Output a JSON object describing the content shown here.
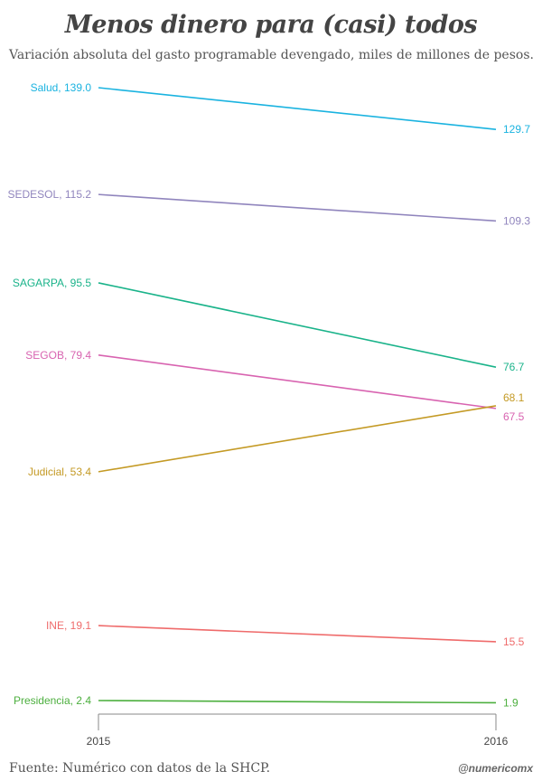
{
  "chart_data": {
    "type": "line",
    "title": "Menos dinero para (casi) todos",
    "subtitle": "Variación absoluta del gasto programable devengado, miles de millones de pesos.",
    "x": [
      "2015",
      "2016"
    ],
    "ylim": [
      0,
      140
    ],
    "grid": false,
    "series": [
      {
        "name": "Salud",
        "color": "#1ab3e0",
        "values": [
          139.0,
          129.7
        ],
        "start_label": "Salud, 139.0",
        "end_label": "129.7"
      },
      {
        "name": "SEDESOL",
        "color": "#9085bd",
        "values": [
          115.2,
          109.3
        ],
        "start_label": "SEDESOL, 115.2",
        "end_label": "109.3"
      },
      {
        "name": "SAGARPA",
        "color": "#1ab38a",
        "values": [
          95.5,
          76.7
        ],
        "start_label": "SAGARPA, 95.5",
        "end_label": "76.7"
      },
      {
        "name": "SEGOB",
        "color": "#d863b0",
        "values": [
          79.4,
          67.5
        ],
        "start_label": "SEGOB, 79.4",
        "end_label": "67.5"
      },
      {
        "name": "Judicial",
        "color": "#c49a25",
        "values": [
          53.4,
          68.1
        ],
        "start_label": "Judicial, 53.4",
        "end_label": "68.1"
      },
      {
        "name": "INE",
        "color": "#ef6b6b",
        "values": [
          19.1,
          15.5
        ],
        "start_label": "INE, 19.1",
        "end_label": "15.5"
      },
      {
        "name": "Presidencia",
        "color": "#4caf3e",
        "values": [
          2.4,
          1.9
        ],
        "start_label": "Presidencia, 2.4",
        "end_label": "1.9"
      }
    ]
  },
  "footer": {
    "source": "Fuente: Numérico con datos de la SHCP.",
    "credit": "@numericomx"
  }
}
